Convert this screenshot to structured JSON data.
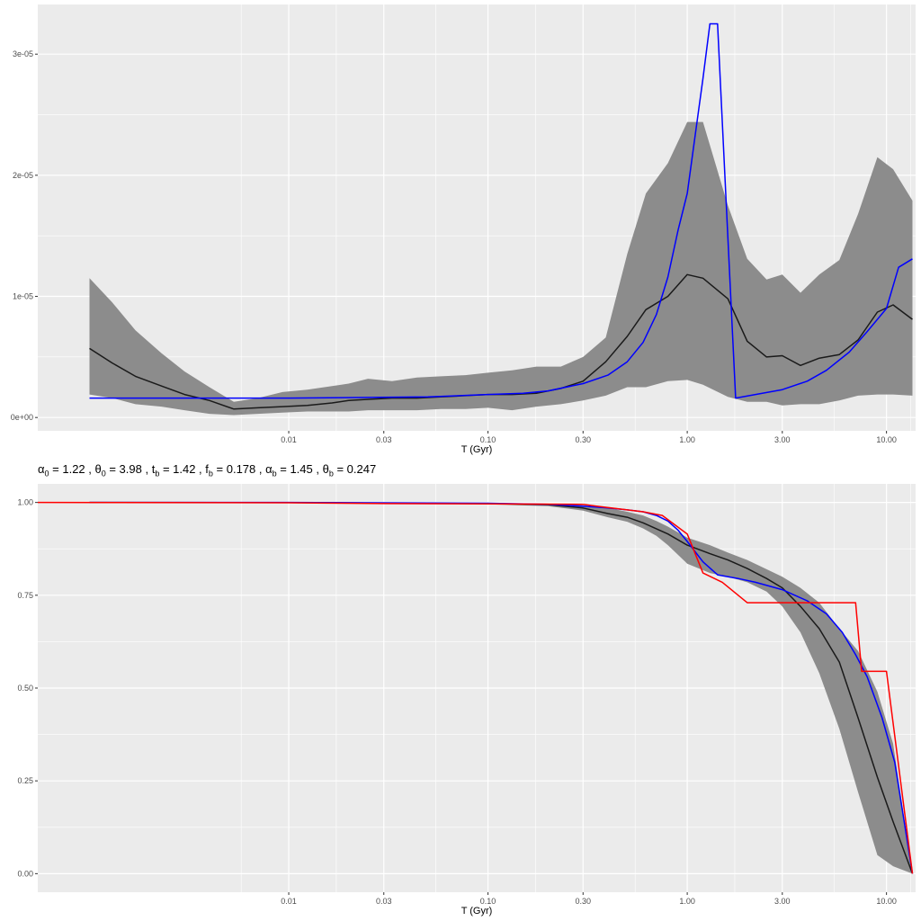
{
  "chart_data": [
    {
      "type": "line",
      "xscale": "log10",
      "xlim": [
        0.00055,
        14
      ],
      "ylim": [
        -1.1e-06,
        3.41e-05
      ],
      "x_ticks": [
        0.01,
        0.03,
        0.1,
        0.3,
        1.0,
        3.0,
        10.0
      ],
      "x_tick_labels": [
        "0.01",
        "0.03",
        "0.10",
        "0.30",
        "1.00",
        "3.00",
        "10.00"
      ],
      "y_ticks": [
        0,
        1e-05,
        2e-05,
        3e-05
      ],
      "y_tick_labels": [
        "0e+00",
        "1e-05",
        "2e-05",
        "3e-05"
      ],
      "xlabel": "T (Gyr)",
      "grid": true,
      "colors": {
        "band": "#8c8c8c",
        "median": "#1a1a1a",
        "model": "#0000ff",
        "panel": "#ebebeb",
        "grid": "#ffffff"
      },
      "series": [
        {
          "kind": "band",
          "x": [
            0.001,
            0.0013,
            0.0017,
            0.0023,
            0.003,
            0.004,
            0.0053,
            0.007,
            0.0093,
            0.0124,
            0.0165,
            0.02,
            0.025,
            0.033,
            0.044,
            0.058,
            0.077,
            0.1,
            0.132,
            0.175,
            0.232,
            0.3,
            0.39,
            0.5,
            0.62,
            0.8,
            1.0,
            1.2,
            1.6,
            2.0,
            2.5,
            3.0,
            3.7,
            4.6,
            5.8,
            7.2,
            9.0,
            10.8,
            13.5
          ],
          "lower": [
            1.9e-06,
            1.6e-06,
            1.1e-06,
            9e-07,
            6e-07,
            3e-07,
            2e-07,
            3e-07,
            4e-07,
            5e-07,
            5e-07,
            5e-07,
            6e-07,
            6e-07,
            6e-07,
            7e-07,
            7e-07,
            8e-07,
            6e-07,
            9e-07,
            1.1e-06,
            1.4e-06,
            1.8e-06,
            2.5e-06,
            2.5e-06,
            3e-06,
            3.1e-06,
            2.7e-06,
            1.7e-06,
            1.3e-06,
            1.3e-06,
            1e-06,
            1.1e-06,
            1.1e-06,
            1.4e-06,
            1.8e-06,
            1.9e-06,
            1.9e-06,
            1.8e-06
          ],
          "upper": [
            1.15e-05,
            9.5e-06,
            7.2e-06,
            5.3e-06,
            3.8e-06,
            2.5e-06,
            1.3e-06,
            1.6e-06,
            2.1e-06,
            2.3e-06,
            2.6e-06,
            2.8e-06,
            3.2e-06,
            3e-06,
            3.3e-06,
            3.4e-06,
            3.5e-06,
            3.7e-06,
            3.9e-06,
            4.2e-06,
            4.2e-06,
            5e-06,
            6.6e-06,
            1.35e-05,
            1.85e-05,
            2.1e-05,
            2.44e-05,
            2.44e-05,
            1.75e-05,
            1.31e-05,
            1.14e-05,
            1.18e-05,
            1.03e-05,
            1.18e-05,
            1.3e-05,
            1.68e-05,
            2.15e-05,
            2.05e-05,
            1.79e-05
          ]
        },
        {
          "kind": "line",
          "color": "#1a1a1a",
          "x": [
            0.001,
            0.0013,
            0.0017,
            0.0023,
            0.003,
            0.004,
            0.0053,
            0.007,
            0.0093,
            0.0124,
            0.0165,
            0.02,
            0.025,
            0.033,
            0.044,
            0.058,
            0.077,
            0.1,
            0.132,
            0.175,
            0.232,
            0.3,
            0.39,
            0.5,
            0.62,
            0.8,
            1.0,
            1.2,
            1.6,
            2.0,
            2.5,
            3.0,
            3.7,
            4.6,
            5.8,
            7.2,
            9.0,
            10.8,
            13.5
          ],
          "y": [
            5.7e-06,
            4.5e-06,
            3.4e-06,
            2.6e-06,
            1.9e-06,
            1.4e-06,
            7e-07,
            8e-07,
            9e-07,
            1e-06,
            1.2e-06,
            1.4e-06,
            1.5e-06,
            1.6e-06,
            1.6e-06,
            1.7e-06,
            1.8e-06,
            1.9e-06,
            1.9e-06,
            2e-06,
            2.4e-06,
            3e-06,
            4.6e-06,
            6.7e-06,
            8.9e-06,
            1e-05,
            1.18e-05,
            1.15e-05,
            9.8e-06,
            6.3e-06,
            5e-06,
            5.1e-06,
            4.3e-06,
            4.9e-06,
            5.2e-06,
            6.4e-06,
            8.7e-06,
            9.3e-06,
            8.1e-06
          ]
        },
        {
          "kind": "line",
          "color": "#0000ff",
          "x": [
            0.001,
            0.01,
            0.05,
            0.1,
            0.15,
            0.2,
            0.3,
            0.4,
            0.5,
            0.6,
            0.7,
            0.8,
            0.9,
            1.0,
            1.1,
            1.2,
            1.3,
            1.42,
            1.75,
            2.2,
            3.0,
            4.0,
            5.0,
            6.5,
            8.0,
            10.0,
            11.5,
            13.5
          ],
          "y": [
            1.6e-06,
            1.6e-06,
            1.7e-06,
            1.9e-06,
            2e-06,
            2.2e-06,
            2.8e-06,
            3.5e-06,
            4.6e-06,
            6.2e-06,
            8.5e-06,
            1.16e-05,
            1.55e-05,
            1.85e-05,
            2.35e-05,
            2.8e-05,
            3.25e-05,
            3.25e-05,
            1.6e-06,
            1.9e-06,
            2.3e-06,
            3e-06,
            3.9e-06,
            5.4e-06,
            7.1e-06,
            9e-06,
            1.24e-05,
            1.31e-05
          ]
        }
      ]
    },
    {
      "type": "line",
      "xscale": "log10",
      "xlim": [
        0.00055,
        14
      ],
      "ylim": [
        -0.05,
        1.05
      ],
      "x_ticks": [
        0.01,
        0.03,
        0.1,
        0.3,
        1.0,
        3.0,
        10.0
      ],
      "x_tick_labels": [
        "0.01",
        "0.03",
        "0.10",
        "0.30",
        "1.00",
        "3.00",
        "10.00"
      ],
      "y_ticks": [
        0,
        0.25,
        0.5,
        0.75,
        1.0
      ],
      "y_tick_labels": [
        "0.00",
        "0.25",
        "0.50",
        "0.75",
        "1.00"
      ],
      "xlabel": "T (Gyr)",
      "grid": true,
      "colors": {
        "band": "#8c8c8c",
        "median": "#1a1a1a",
        "model": "#0000ff",
        "data": "#ff0000",
        "panel": "#ebebeb",
        "grid": "#ffffff"
      },
      "series": [
        {
          "kind": "band",
          "x": [
            0.001,
            0.01,
            0.1,
            0.2,
            0.3,
            0.4,
            0.5,
            0.6,
            0.7,
            0.8,
            1.0,
            1.3,
            1.6,
            2.0,
            2.5,
            3.0,
            3.7,
            4.6,
            5.8,
            7.2,
            9.0,
            10.8,
            13.5
          ],
          "lower": [
            1.0,
            0.999,
            0.995,
            0.99,
            0.978,
            0.96,
            0.948,
            0.93,
            0.91,
            0.885,
            0.835,
            0.81,
            0.8,
            0.785,
            0.76,
            0.72,
            0.65,
            0.54,
            0.39,
            0.22,
            0.05,
            0.02,
            0.0
          ],
          "upper": [
            1.0,
            1.0,
            0.998,
            0.997,
            0.992,
            0.985,
            0.975,
            0.965,
            0.95,
            0.935,
            0.905,
            0.885,
            0.865,
            0.845,
            0.82,
            0.8,
            0.77,
            0.73,
            0.66,
            0.6,
            0.49,
            0.35,
            0.0
          ]
        },
        {
          "kind": "line",
          "color": "#1a1a1a",
          "x": [
            0.001,
            0.01,
            0.1,
            0.2,
            0.3,
            0.4,
            0.5,
            0.6,
            0.8,
            1.0,
            1.3,
            1.6,
            2.0,
            2.5,
            3.0,
            3.7,
            4.6,
            5.8,
            7.2,
            9.0,
            10.8,
            13.5
          ],
          "y": [
            1.0,
            0.9995,
            0.997,
            0.994,
            0.985,
            0.97,
            0.96,
            0.945,
            0.915,
            0.885,
            0.862,
            0.845,
            0.822,
            0.795,
            0.77,
            0.72,
            0.66,
            0.57,
            0.42,
            0.26,
            0.14,
            0.0
          ]
        },
        {
          "kind": "line",
          "color": "#0000ff",
          "x": [
            0.001,
            0.01,
            0.1,
            0.2,
            0.3,
            0.4,
            0.5,
            0.6,
            0.7,
            0.8,
            0.9,
            1.0,
            1.2,
            1.42,
            1.8,
            2.2,
            3.0,
            4.0,
            5.0,
            6.0,
            7.0,
            8.0,
            9.5,
            11.0,
            13.5
          ],
          "y": [
            1.0,
            1.0,
            0.998,
            0.995,
            0.99,
            0.985,
            0.98,
            0.975,
            0.965,
            0.95,
            0.925,
            0.895,
            0.84,
            0.805,
            0.795,
            0.785,
            0.765,
            0.735,
            0.7,
            0.65,
            0.59,
            0.53,
            0.42,
            0.3,
            0.0
          ]
        },
        {
          "kind": "line",
          "color": "#ff0000",
          "x": [
            0.00055,
            0.01,
            0.03,
            0.1,
            0.3,
            0.35,
            0.6,
            0.75,
            1.0,
            1.2,
            1.5,
            2.0,
            5.0,
            7.0,
            7.5,
            9.5,
            10.0,
            13.5
          ],
          "y": [
            1.0,
            0.999,
            0.997,
            0.996,
            0.995,
            0.99,
            0.975,
            0.965,
            0.915,
            0.81,
            0.785,
            0.73,
            0.73,
            0.73,
            0.545,
            0.545,
            0.545,
            0.0
          ]
        }
      ]
    }
  ],
  "params": {
    "a0_sym": "α",
    "a0_sub": "0",
    "a0_val": " = 1.22 , ",
    "t0_sym": "θ",
    "t0_sub": "0",
    "t0_val": " = 3.98 , ",
    "tb_sym": "t",
    "tb_sub": "b",
    "tb_val": " = 1.42 , ",
    "fb_sym": "f",
    "fb_sub": "b",
    "fb_val": " = 0.178 , ",
    "ab_sym": "α",
    "ab_sub": "b",
    "ab_val": " = 1.45 , ",
    "tb2_sym": "θ",
    "tb2_sub": "b",
    "tb2_val": " = 0.247"
  }
}
